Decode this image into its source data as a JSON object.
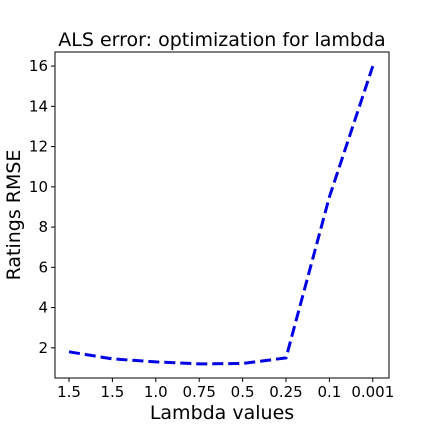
{
  "colors": {
    "series": "#0000e6",
    "axes": "#000000",
    "background": "#ffffff"
  },
  "chart_data": {
    "type": "line",
    "title": "ALS error: optimization for lambda",
    "xlabel": "Lambda values",
    "ylabel": "Ratings RMSE",
    "categories": [
      "1.5",
      "1.5",
      "1.0",
      "0.75",
      "0.5",
      "0.25",
      "0.1",
      "0.001"
    ],
    "series": [
      {
        "values": [
          1.8,
          1.45,
          1.3,
          1.2,
          1.22,
          1.5,
          9.5,
          16.0
        ],
        "style": "dashed",
        "color": "#0000e6"
      }
    ],
    "y_ticks": [
      2,
      4,
      6,
      8,
      10,
      12,
      14,
      16
    ],
    "ylim": [
      0.5,
      16.7
    ],
    "grid": false,
    "legend": "none"
  }
}
